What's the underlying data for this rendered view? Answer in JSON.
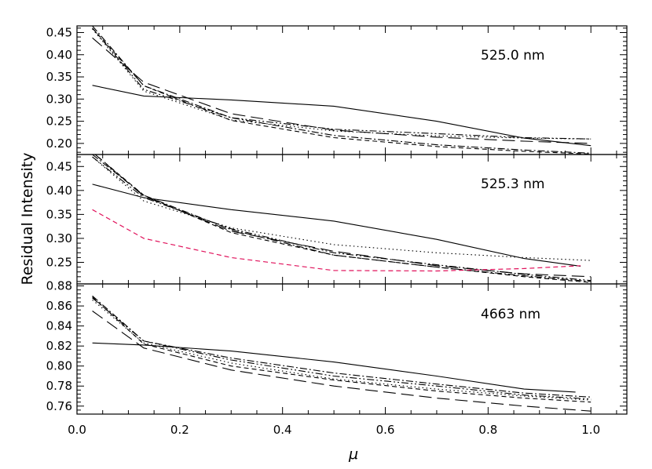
{
  "figure": {
    "ylabel": "Residual Intensity",
    "xlabel": "μ"
  },
  "chart_data": [
    {
      "type": "line",
      "label": "525.0 nm",
      "xlabel": "μ",
      "ylabel": "Residual Intensity",
      "xlim": [
        0.0,
        1.07
      ],
      "ylim": [
        0.175,
        0.465
      ],
      "x_ticks": [
        "0.0",
        "0.2",
        "0.4",
        "0.6",
        "0.8",
        "1.0"
      ],
      "y_ticks": [
        "0.20",
        "0.25",
        "0.30",
        "0.35",
        "0.40",
        "0.45"
      ],
      "series": [
        {
          "style": "solid",
          "color": "#000000",
          "x": [
            0.03,
            0.13,
            0.3,
            0.5,
            0.7,
            0.87,
            1.0
          ],
          "y": [
            0.331,
            0.307,
            0.298,
            0.284,
            0.25,
            0.212,
            0.195
          ]
        },
        {
          "style": "longdash",
          "color": "#000000",
          "x": [
            0.03,
            0.13,
            0.3,
            0.5,
            0.7,
            0.87,
            1.0
          ],
          "y": [
            0.438,
            0.338,
            0.267,
            0.23,
            0.214,
            0.205,
            0.2
          ]
        },
        {
          "style": "dashdot",
          "color": "#000000",
          "x": [
            0.03,
            0.13,
            0.3,
            0.5,
            0.7,
            0.87,
            1.0
          ],
          "y": [
            0.465,
            0.33,
            0.258,
            0.218,
            0.197,
            0.185,
            0.178
          ]
        },
        {
          "style": "dashdotdot",
          "color": "#000000",
          "x": [
            0.03,
            0.13,
            0.3,
            0.5,
            0.7,
            0.87,
            1.0
          ],
          "y": [
            0.46,
            0.322,
            0.258,
            0.232,
            0.222,
            0.213,
            0.21
          ]
        },
        {
          "style": "dotted",
          "color": "#000000",
          "x": [
            0.03,
            0.13,
            0.3,
            0.5,
            0.7,
            0.87,
            1.0
          ],
          "y": [
            0.458,
            0.318,
            0.253,
            0.228,
            0.217,
            0.212,
            0.21
          ]
        },
        {
          "style": "shortdash",
          "color": "#000000",
          "x": [
            0.03,
            0.13,
            0.3,
            0.5,
            0.7,
            0.87,
            1.0
          ],
          "y": [
            0.46,
            0.33,
            0.252,
            0.213,
            0.193,
            0.182,
            0.176
          ]
        }
      ]
    },
    {
      "type": "line",
      "label": "525.3 nm",
      "xlabel": "μ",
      "ylabel": "Residual Intensity",
      "xlim": [
        0.0,
        1.07
      ],
      "ylim": [
        0.205,
        0.475
      ],
      "x_ticks": [
        "0.0",
        "0.2",
        "0.4",
        "0.6",
        "0.8",
        "1.0"
      ],
      "y_ticks": [
        "0.25",
        "0.30",
        "0.35",
        "0.40",
        "0.45"
      ],
      "series": [
        {
          "style": "solid",
          "color": "#000000",
          "x": [
            0.03,
            0.13,
            0.3,
            0.5,
            0.7,
            0.87,
            0.98
          ],
          "y": [
            0.413,
            0.385,
            0.36,
            0.336,
            0.298,
            0.258,
            0.242
          ]
        },
        {
          "style": "longdash",
          "color": "#000000",
          "x": [
            0.03,
            0.13,
            0.3,
            0.5,
            0.7,
            0.87,
            1.0
          ],
          "y": [
            0.48,
            0.388,
            0.315,
            0.273,
            0.243,
            0.226,
            0.22
          ]
        },
        {
          "style": "dashdot",
          "color": "#000000",
          "x": [
            0.03,
            0.13,
            0.3,
            0.5,
            0.7,
            0.87,
            1.0
          ],
          "y": [
            0.475,
            0.39,
            0.318,
            0.265,
            0.24,
            0.222,
            0.21
          ]
        },
        {
          "style": "dashdotdot",
          "color": "#000000",
          "x": [
            0.03,
            0.13,
            0.3,
            0.5,
            0.7,
            0.87,
            1.0
          ],
          "y": [
            0.47,
            0.385,
            0.32,
            0.27,
            0.245,
            0.225,
            0.212
          ]
        },
        {
          "style": "dotted",
          "color": "#000000",
          "x": [
            0.03,
            0.13,
            0.3,
            0.5,
            0.7,
            0.87,
            1.0
          ],
          "y": [
            0.47,
            0.378,
            0.322,
            0.287,
            0.27,
            0.26,
            0.254
          ]
        },
        {
          "style": "shortdash",
          "color": "#000000",
          "x": [
            0.03,
            0.13,
            0.3,
            0.5,
            0.7,
            0.87,
            1.0
          ],
          "y": [
            0.48,
            0.39,
            0.312,
            0.265,
            0.24,
            0.22,
            0.208
          ]
        },
        {
          "style": "shortdash",
          "color": "#e0105a",
          "x": [
            0.03,
            0.13,
            0.3,
            0.5,
            0.7,
            0.87,
            0.98
          ],
          "y": [
            0.36,
            0.3,
            0.26,
            0.233,
            0.232,
            0.237,
            0.243
          ]
        }
      ]
    },
    {
      "type": "line",
      "label": "4663 nm",
      "xlabel": "μ",
      "ylabel": "Residual Intensity",
      "xlim": [
        0.0,
        1.07
      ],
      "ylim": [
        0.752,
        0.882
      ],
      "x_ticks": [
        "0.0",
        "0.2",
        "0.4",
        "0.6",
        "0.8",
        "1.0"
      ],
      "y_ticks": [
        "0.76",
        "0.78",
        "0.80",
        "0.82",
        "0.84",
        "0.86",
        "0.88"
      ],
      "series": [
        {
          "style": "solid",
          "color": "#000000",
          "x": [
            0.03,
            0.13,
            0.3,
            0.5,
            0.7,
            0.87,
            0.97
          ],
          "y": [
            0.823,
            0.821,
            0.815,
            0.804,
            0.79,
            0.777,
            0.774
          ]
        },
        {
          "style": "longdash",
          "color": "#000000",
          "x": [
            0.03,
            0.13,
            0.3,
            0.5,
            0.7,
            0.87,
            1.0
          ],
          "y": [
            0.855,
            0.818,
            0.796,
            0.78,
            0.768,
            0.76,
            0.755
          ]
        },
        {
          "style": "dashdot",
          "color": "#000000",
          "x": [
            0.03,
            0.13,
            0.3,
            0.5,
            0.7,
            0.87,
            1.0
          ],
          "y": [
            0.87,
            0.825,
            0.808,
            0.793,
            0.782,
            0.773,
            0.769
          ]
        },
        {
          "style": "dashdotdot",
          "color": "#000000",
          "x": [
            0.03,
            0.13,
            0.3,
            0.5,
            0.7,
            0.87,
            1.0
          ],
          "y": [
            0.868,
            0.825,
            0.806,
            0.79,
            0.78,
            0.771,
            0.767
          ]
        },
        {
          "style": "dotted",
          "color": "#000000",
          "x": [
            0.03,
            0.13,
            0.3,
            0.5,
            0.7,
            0.87,
            1.0
          ],
          "y": [
            0.866,
            0.823,
            0.803,
            0.787,
            0.777,
            0.77,
            0.766
          ]
        },
        {
          "style": "shortdash",
          "color": "#000000",
          "x": [
            0.03,
            0.13,
            0.3,
            0.5,
            0.7,
            0.87,
            1.0
          ],
          "y": [
            0.869,
            0.822,
            0.8,
            0.786,
            0.775,
            0.768,
            0.764
          ]
        }
      ]
    }
  ]
}
